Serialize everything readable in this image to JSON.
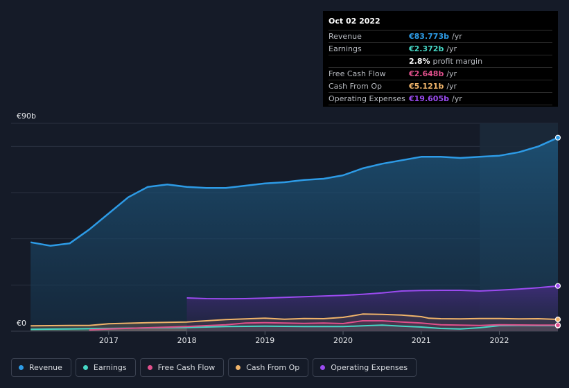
{
  "tooltip": {
    "date": "Oct 02 2022",
    "rows": [
      {
        "label": "Revenue",
        "value": "€83.773b",
        "unit": "/yr",
        "color": "#2d9be6"
      },
      {
        "label": "Earnings",
        "value": "€2.372b",
        "unit": "/yr",
        "color": "#46d7c5"
      },
      {
        "label": "",
        "value": "2.8%",
        "unit": "profit margin",
        "color": "#ffffff"
      },
      {
        "label": "Free Cash Flow",
        "value": "€2.648b",
        "unit": "/yr",
        "color": "#e0508c"
      },
      {
        "label": "Cash From Op",
        "value": "€5.121b",
        "unit": "/yr",
        "color": "#f0b46a"
      },
      {
        "label": "Operating Expenses",
        "value": "€19.605b",
        "unit": "/yr",
        "color": "#9b4bf0"
      }
    ]
  },
  "legend": [
    {
      "label": "Revenue",
      "color": "#2d9be6"
    },
    {
      "label": "Earnings",
      "color": "#46d7c5"
    },
    {
      "label": "Free Cash Flow",
      "color": "#e0508c"
    },
    {
      "label": "Cash From Op",
      "color": "#f0b46a"
    },
    {
      "label": "Operating Expenses",
      "color": "#9b4bf0"
    }
  ],
  "chart_data": {
    "type": "area",
    "y_top_label": "€90b",
    "y_bottom_label": "€0",
    "ylim": [
      0,
      90
    ],
    "xlim": [
      2015.75,
      2022.75
    ],
    "x_ticks": [
      "2017",
      "2018",
      "2019",
      "2020",
      "2021",
      "2022"
    ],
    "x_tick_values": [
      2017,
      2018,
      2019,
      2020,
      2021,
      2022
    ],
    "highlight_from": 2021.75,
    "series": [
      {
        "name": "Revenue",
        "color": "#2d9be6",
        "x": [
          2016.0,
          2016.25,
          2016.5,
          2016.75,
          2017.0,
          2017.25,
          2017.5,
          2017.75,
          2018.0,
          2018.25,
          2018.5,
          2018.75,
          2019.0,
          2019.25,
          2019.5,
          2019.75,
          2020.0,
          2020.25,
          2020.5,
          2020.75,
          2021.0,
          2021.25,
          2021.5,
          2021.75,
          2022.0,
          2022.25,
          2022.5,
          2022.75
        ],
        "values": [
          38.5,
          37.0,
          38.0,
          44.0,
          51.0,
          58.0,
          62.5,
          63.5,
          62.5,
          62.0,
          62.0,
          63.0,
          64.0,
          64.5,
          65.5,
          66.0,
          67.5,
          70.5,
          72.5,
          74.0,
          75.5,
          75.5,
          75.0,
          75.5,
          76.0,
          77.5,
          80.0,
          83.8
        ]
      },
      {
        "name": "Earnings",
        "color": "#46d7c5",
        "x": [
          2016.0,
          2016.5,
          2017.0,
          2017.5,
          2018.0,
          2018.5,
          2019.0,
          2019.5,
          2020.0,
          2020.25,
          2020.5,
          2020.75,
          2021.0,
          2021.25,
          2021.5,
          2021.75,
          2022.0,
          2022.25,
          2022.5,
          2022.75
        ],
        "values": [
          0.8,
          1.0,
          1.2,
          1.4,
          1.6,
          2.0,
          2.2,
          2.0,
          2.0,
          2.3,
          2.6,
          2.2,
          1.8,
          1.2,
          1.0,
          1.5,
          2.4,
          2.5,
          2.4,
          2.4
        ]
      },
      {
        "name": "Free Cash Flow",
        "color": "#e0508c",
        "x": [
          2016.75,
          2017.0,
          2017.5,
          2018.0,
          2018.5,
          2018.75,
          2019.0,
          2019.25,
          2019.5,
          2019.75,
          2020.0,
          2020.25,
          2020.5,
          2020.75,
          2021.0,
          2021.25,
          2021.5,
          2021.75,
          2022.0,
          2022.25,
          2022.5,
          2022.75
        ],
        "values": [
          0.5,
          1.0,
          1.5,
          2.0,
          2.8,
          3.5,
          3.7,
          3.5,
          3.4,
          3.5,
          3.3,
          4.5,
          4.5,
          4.0,
          3.5,
          2.8,
          2.6,
          2.5,
          2.8,
          2.7,
          2.6,
          2.6
        ]
      },
      {
        "name": "Cash From Op",
        "color": "#f0b46a",
        "x": [
          2016.0,
          2016.5,
          2016.75,
          2017.0,
          2017.5,
          2018.0,
          2018.25,
          2018.5,
          2018.75,
          2019.0,
          2019.25,
          2019.5,
          2019.75,
          2020.0,
          2020.1,
          2020.25,
          2020.5,
          2020.75,
          2021.0,
          2021.1,
          2021.25,
          2021.5,
          2021.75,
          2022.0,
          2022.25,
          2022.5,
          2022.75
        ],
        "values": [
          2.3,
          2.5,
          2.5,
          3.2,
          3.7,
          4.0,
          4.5,
          5.0,
          5.3,
          5.6,
          5.2,
          5.5,
          5.4,
          6.0,
          6.5,
          7.4,
          7.3,
          7.0,
          6.3,
          5.6,
          5.4,
          5.3,
          5.5,
          5.5,
          5.3,
          5.4,
          5.1
        ]
      },
      {
        "name": "Operating Expenses",
        "color": "#9b4bf0",
        "x": [
          2018.0,
          2018.25,
          2018.5,
          2018.75,
          2019.0,
          2019.25,
          2019.5,
          2019.75,
          2020.0,
          2020.25,
          2020.5,
          2020.75,
          2021.0,
          2021.25,
          2021.5,
          2021.75,
          2022.0,
          2022.25,
          2022.5,
          2022.75
        ],
        "values": [
          14.4,
          14.1,
          14.0,
          14.1,
          14.3,
          14.6,
          14.9,
          15.2,
          15.5,
          16.0,
          16.6,
          17.4,
          17.6,
          17.7,
          17.7,
          17.4,
          17.8,
          18.2,
          18.8,
          19.6
        ]
      }
    ]
  }
}
